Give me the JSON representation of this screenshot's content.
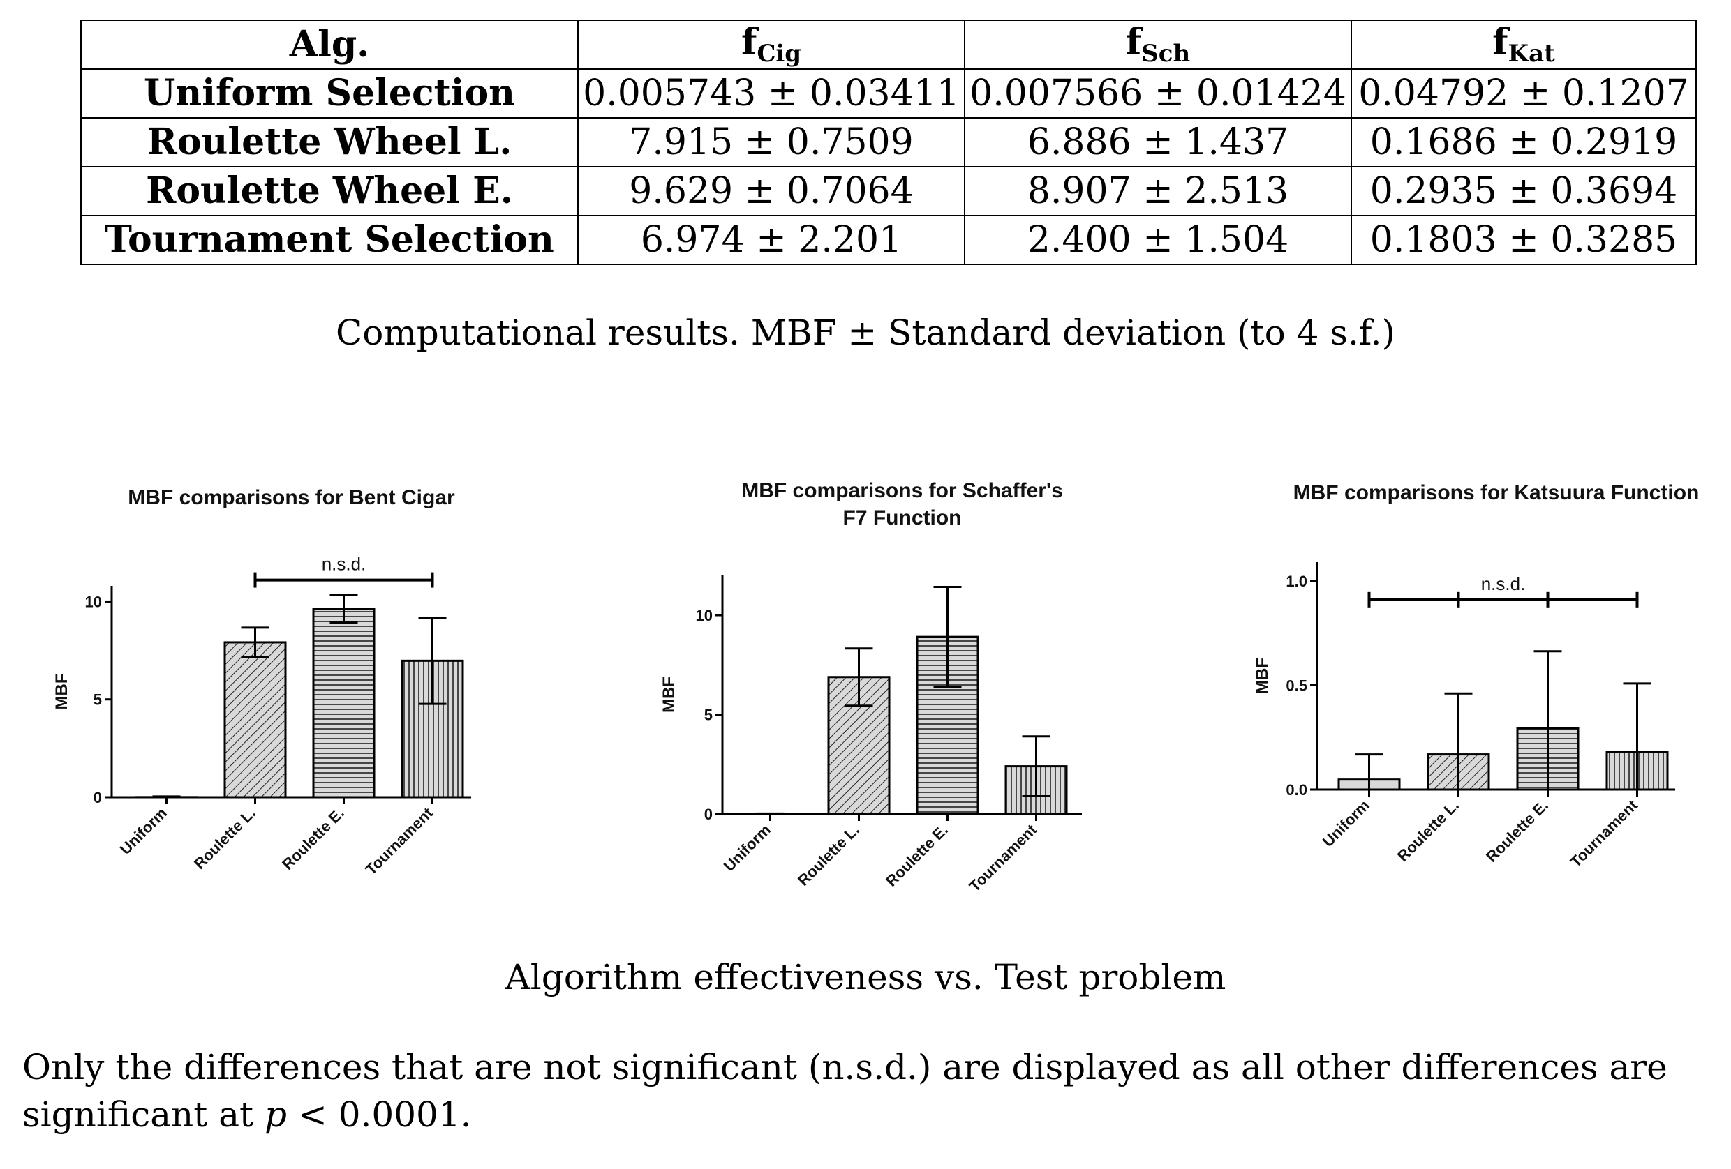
{
  "table": {
    "headers": [
      "Alg.",
      "f",
      "f",
      "f"
    ],
    "header_subscripts": [
      "",
      "Cig",
      "Sch",
      "Kat"
    ],
    "rows": [
      {
        "label": "Uniform Selection",
        "cells": [
          "0.005743 ± 0.03411",
          "0.007566 ± 0.01424",
          "0.04792 ± 0.1207"
        ]
      },
      {
        "label": "Roulette Wheel L.",
        "cells": [
          "7.915 ± 0.7509",
          "6.886 ± 1.437",
          "0.1686 ± 0.2919"
        ]
      },
      {
        "label": "Roulette Wheel E.",
        "cells": [
          "9.629 ± 0.7064",
          "8.907 ± 2.513",
          "0.2935 ± 0.3694"
        ]
      },
      {
        "label": "Tournament Selection",
        "cells": [
          "6.974 ± 2.201",
          "2.400 ± 1.504",
          "0.1803 ± 0.3285"
        ]
      }
    ]
  },
  "table_caption": "Computational results. MBF ± Standard deviation (to 4 s.f.)",
  "chart_data": [
    {
      "type": "bar",
      "title": [
        "MBF comparisons for  Bent Cigar"
      ],
      "categories": [
        "Uniform",
        "Roulette L.",
        "Roulette E.",
        "Tournament"
      ],
      "values": [
        0.005743,
        7.915,
        9.629,
        6.974
      ],
      "errors": [
        0.03411,
        0.7509,
        0.7064,
        2.201
      ],
      "ylabel": "MBF",
      "xlabel": "",
      "ylim": [
        0,
        10.8
      ],
      "yticks": [
        0,
        5,
        10
      ],
      "ytick_labels": [
        "0",
        "5",
        "10"
      ],
      "annotations": [
        {
          "text": "n.s.d.",
          "from": 1,
          "to": 3,
          "y": 11.1
        }
      ]
    },
    {
      "type": "bar",
      "title": [
        "MBF comparisons for  Schaffer's",
        "F7 Function"
      ],
      "categories": [
        "Uniform",
        "Roulette L.",
        "Roulette E.",
        "Tournament"
      ],
      "values": [
        0.007566,
        6.886,
        8.907,
        2.4
      ],
      "errors": [
        0.01424,
        1.437,
        2.513,
        1.504
      ],
      "ylabel": "MBF",
      "xlabel": "",
      "ylim": [
        0,
        12
      ],
      "yticks": [
        0,
        5,
        10
      ],
      "ytick_labels": [
        "0",
        "5",
        "10"
      ],
      "annotations": []
    },
    {
      "type": "bar",
      "title": [
        "MBF comparisons for  Katsuura Function"
      ],
      "categories": [
        "Uniform",
        "Roulette L.",
        "Roulette E.",
        "Tournament"
      ],
      "values": [
        0.04792,
        0.1686,
        0.2935,
        0.1803
      ],
      "errors": [
        0.1207,
        0.2919,
        0.3694,
        0.3285
      ],
      "ylabel": "MBF",
      "xlabel": "",
      "ylim": [
        0,
        1.09
      ],
      "yticks": [
        0,
        0.5,
        1.0
      ],
      "ytick_labels": [
        "0.0",
        "0.5",
        "1.0"
      ],
      "annotations": [
        {
          "text": "n.s.d.",
          "from": 0,
          "to": 3,
          "y": 0.91,
          "ticks": [
            1,
            2
          ]
        }
      ]
    }
  ],
  "figure_caption": "Algorithm effectiveness vs. Test problem",
  "footnote": {
    "text_before": "Only the differences that are not significant (n.s.d.) are displayed as all other differences are significant at ",
    "math_var": "p",
    "text_after": " < 0.0001."
  },
  "colors": {
    "ink": "#000000",
    "bar_fill": "#d9d9d9",
    "background": "#ffffff"
  }
}
